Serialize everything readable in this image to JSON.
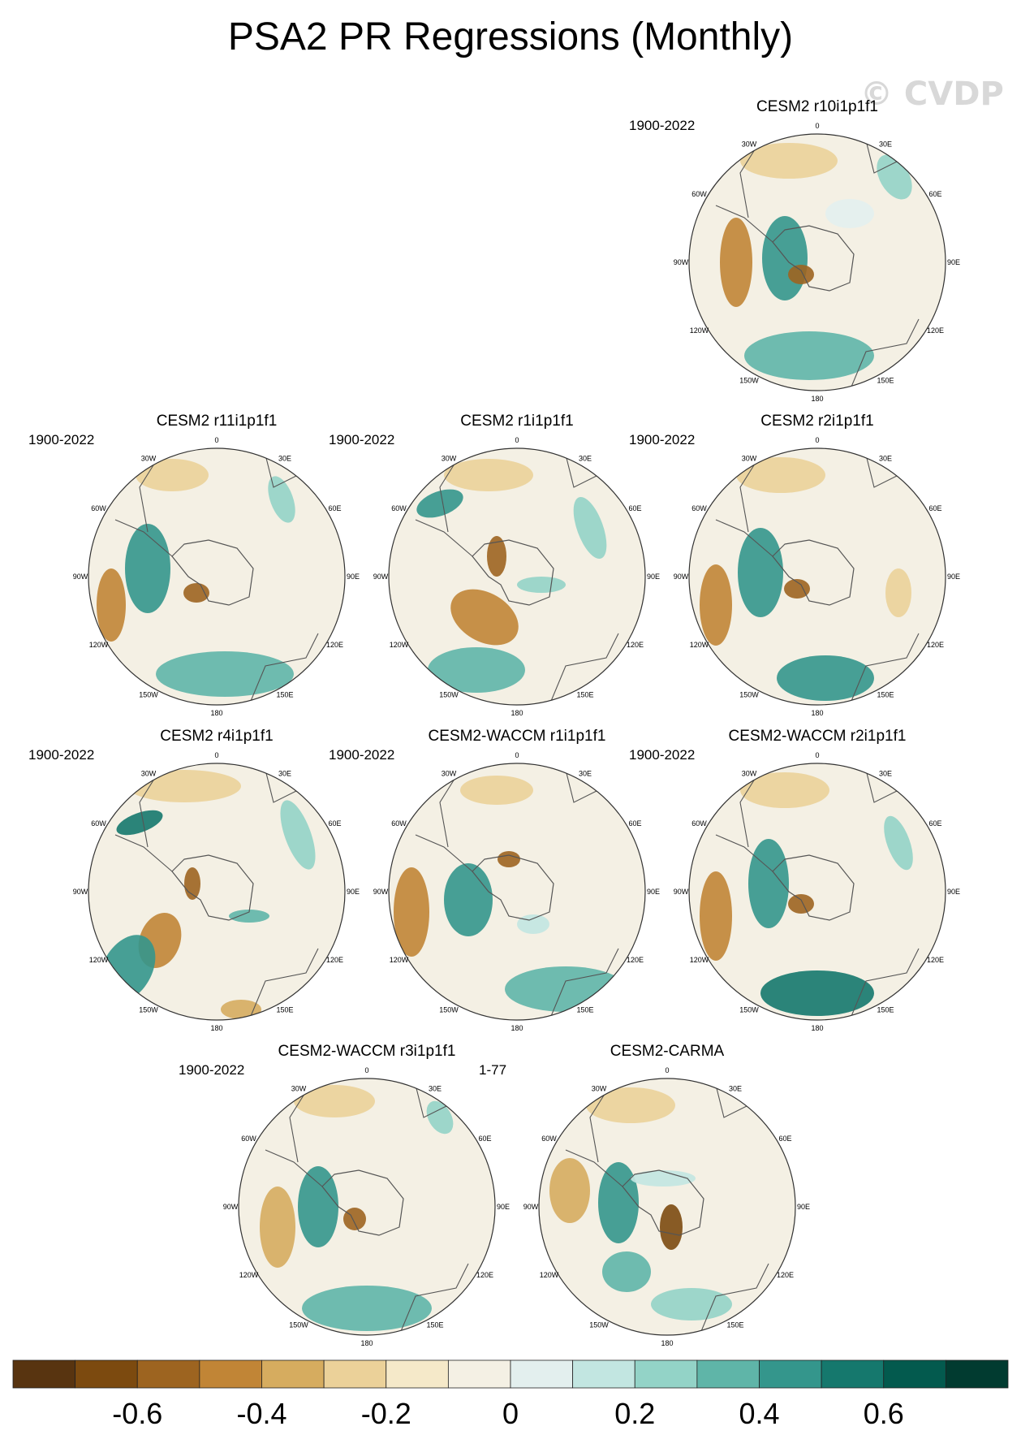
{
  "page": {
    "title": "PSA2 PR Regressions (Monthly)",
    "watermark": "© CVDP"
  },
  "longitude_labels": {
    "n": "0",
    "nne": "30E",
    "ene": "60E",
    "e": "90E",
    "ese": "120E",
    "sse": "150E",
    "s": "180",
    "ssw": "150W",
    "wsw": "120W",
    "w": "90W",
    "wnw": "60W",
    "nnw": "30W"
  },
  "panels": [
    {
      "title": "CESM2 r10i1p1f1",
      "period": "1900-2022"
    },
    {
      "title": "CESM2 r11i1p1f1",
      "period": "1900-2022"
    },
    {
      "title": "CESM2 r1i1p1f1",
      "period": "1900-2022"
    },
    {
      "title": "CESM2 r2i1p1f1",
      "period": "1900-2022"
    },
    {
      "title": "CESM2 r4i1p1f1",
      "period": "1900-2022"
    },
    {
      "title": "CESM2-WACCM r1i1p1f1",
      "period": "1900-2022"
    },
    {
      "title": "CESM2-WACCM r2i1p1f1",
      "period": "1900-2022"
    },
    {
      "title": "CESM2-WACCM r3i1p1f1",
      "period": "1900-2022"
    },
    {
      "title": "CESM2-CARMA",
      "period": "1-77"
    }
  ],
  "colorbar": {
    "colors": [
      "#583410",
      "#7c4a0f",
      "#9d6420",
      "#c18536",
      "#d6ac5f",
      "#ebd199",
      "#f5e9c9",
      "#f4f0e4",
      "#e3efee",
      "#c2e6e1",
      "#93d3c7",
      "#5fb5a8",
      "#34968c",
      "#15786d",
      "#035a4e",
      "#013b30"
    ],
    "labels": [
      "-0.6",
      "-0.4",
      "-0.2",
      "0",
      "0.2",
      "0.4",
      "0.6"
    ]
  }
}
